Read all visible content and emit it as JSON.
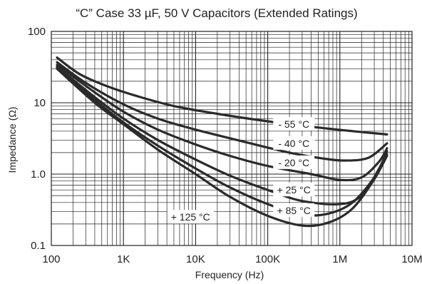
{
  "chart_data": {
    "type": "line",
    "title": "“C” Case 33 µF, 50 V Capacitors (Extended Ratings)",
    "xlabel": "Frequency (Hz)",
    "ylabel": "Impedance (Ω)",
    "x_scale": "log",
    "y_scale": "log",
    "xlim": [
      100,
      10000000
    ],
    "ylim": [
      0.1,
      100
    ],
    "grid": true,
    "x_ticks": [
      {
        "value": 100,
        "label": "100"
      },
      {
        "value": 1000,
        "label": "1K"
      },
      {
        "value": 10000,
        "label": "10K"
      },
      {
        "value": 100000,
        "label": "100K"
      },
      {
        "value": 1000000,
        "label": "1M"
      },
      {
        "value": 10000000,
        "label": "10M"
      }
    ],
    "y_ticks": [
      {
        "value": 0.1,
        "label": "0.1"
      },
      {
        "value": 1,
        "label": "1.0"
      },
      {
        "value": 10,
        "label": "10"
      },
      {
        "value": 100,
        "label": "100"
      }
    ],
    "series": [
      {
        "name": "- 55 °C",
        "label_at": [
          230000,
          5.0
        ],
        "points": [
          [
            120,
            43
          ],
          [
            250,
            25
          ],
          [
            600,
            17
          ],
          [
            1500,
            12.5
          ],
          [
            5000,
            9
          ],
          [
            20000,
            7
          ],
          [
            100000,
            5.5
          ],
          [
            500000,
            4.5
          ],
          [
            1500000,
            4.0
          ],
          [
            4500000,
            3.6
          ]
        ]
      },
      {
        "name": "- 40 °C",
        "label_at": [
          230000,
          2.7
        ],
        "points": [
          [
            120,
            37
          ],
          [
            300,
            19
          ],
          [
            1000,
            9.5
          ],
          [
            3000,
            6
          ],
          [
            10000,
            4.2
          ],
          [
            50000,
            2.8
          ],
          [
            200000,
            2.0
          ],
          [
            600000,
            1.65
          ],
          [
            1200000,
            1.55
          ],
          [
            2500000,
            1.7
          ],
          [
            4500000,
            2.7
          ]
        ]
      },
      {
        "name": "- 20 °C",
        "label_at": [
          230000,
          1.45
        ],
        "points": [
          [
            120,
            34
          ],
          [
            400,
            14
          ],
          [
            1000,
            7.5
          ],
          [
            3000,
            4.2
          ],
          [
            10000,
            2.6
          ],
          [
            30000,
            1.8
          ],
          [
            100000,
            1.3
          ],
          [
            400000,
            1.0
          ],
          [
            1000000,
            0.83
          ],
          [
            2000000,
            0.9
          ],
          [
            3500000,
            1.5
          ],
          [
            4500000,
            2.3
          ]
        ]
      },
      {
        "name": "+ 25 °C",
        "label_at": [
          230000,
          0.6
        ],
        "points": [
          [
            120,
            32
          ],
          [
            400,
            12
          ],
          [
            1000,
            6
          ],
          [
            3000,
            3
          ],
          [
            10000,
            1.6
          ],
          [
            30000,
            0.95
          ],
          [
            100000,
            0.6
          ],
          [
            300000,
            0.42
          ],
          [
            1000000,
            0.38
          ],
          [
            2000000,
            0.5
          ],
          [
            3500000,
            1.2
          ],
          [
            4500000,
            2.1
          ]
        ]
      },
      {
        "name": "+ 85 °C",
        "label_at": [
          230000,
          0.31
        ],
        "points": [
          [
            120,
            31
          ],
          [
            400,
            11
          ],
          [
            1000,
            5.3
          ],
          [
            3000,
            2.5
          ],
          [
            10000,
            1.2
          ],
          [
            30000,
            0.65
          ],
          [
            100000,
            0.38
          ],
          [
            300000,
            0.27
          ],
          [
            700000,
            0.28
          ],
          [
            1500000,
            0.4
          ],
          [
            3000000,
            0.9
          ],
          [
            4500000,
            1.9
          ]
        ]
      },
      {
        "name": "+ 125 °C",
        "label_at": [
          8500,
          0.25
        ],
        "points": [
          [
            120,
            30
          ],
          [
            400,
            10
          ],
          [
            1000,
            5
          ],
          [
            3000,
            2.2
          ],
          [
            10000,
            1.0
          ],
          [
            30000,
            0.48
          ],
          [
            100000,
            0.26
          ],
          [
            300000,
            0.19
          ],
          [
            700000,
            0.21
          ],
          [
            1500000,
            0.33
          ],
          [
            3000000,
            0.85
          ],
          [
            4500000,
            1.8
          ]
        ]
      }
    ]
  },
  "colors": {
    "curve": "#2a2a2a",
    "grid": "#222222",
    "text": "#222222",
    "background": "#ffffff"
  }
}
